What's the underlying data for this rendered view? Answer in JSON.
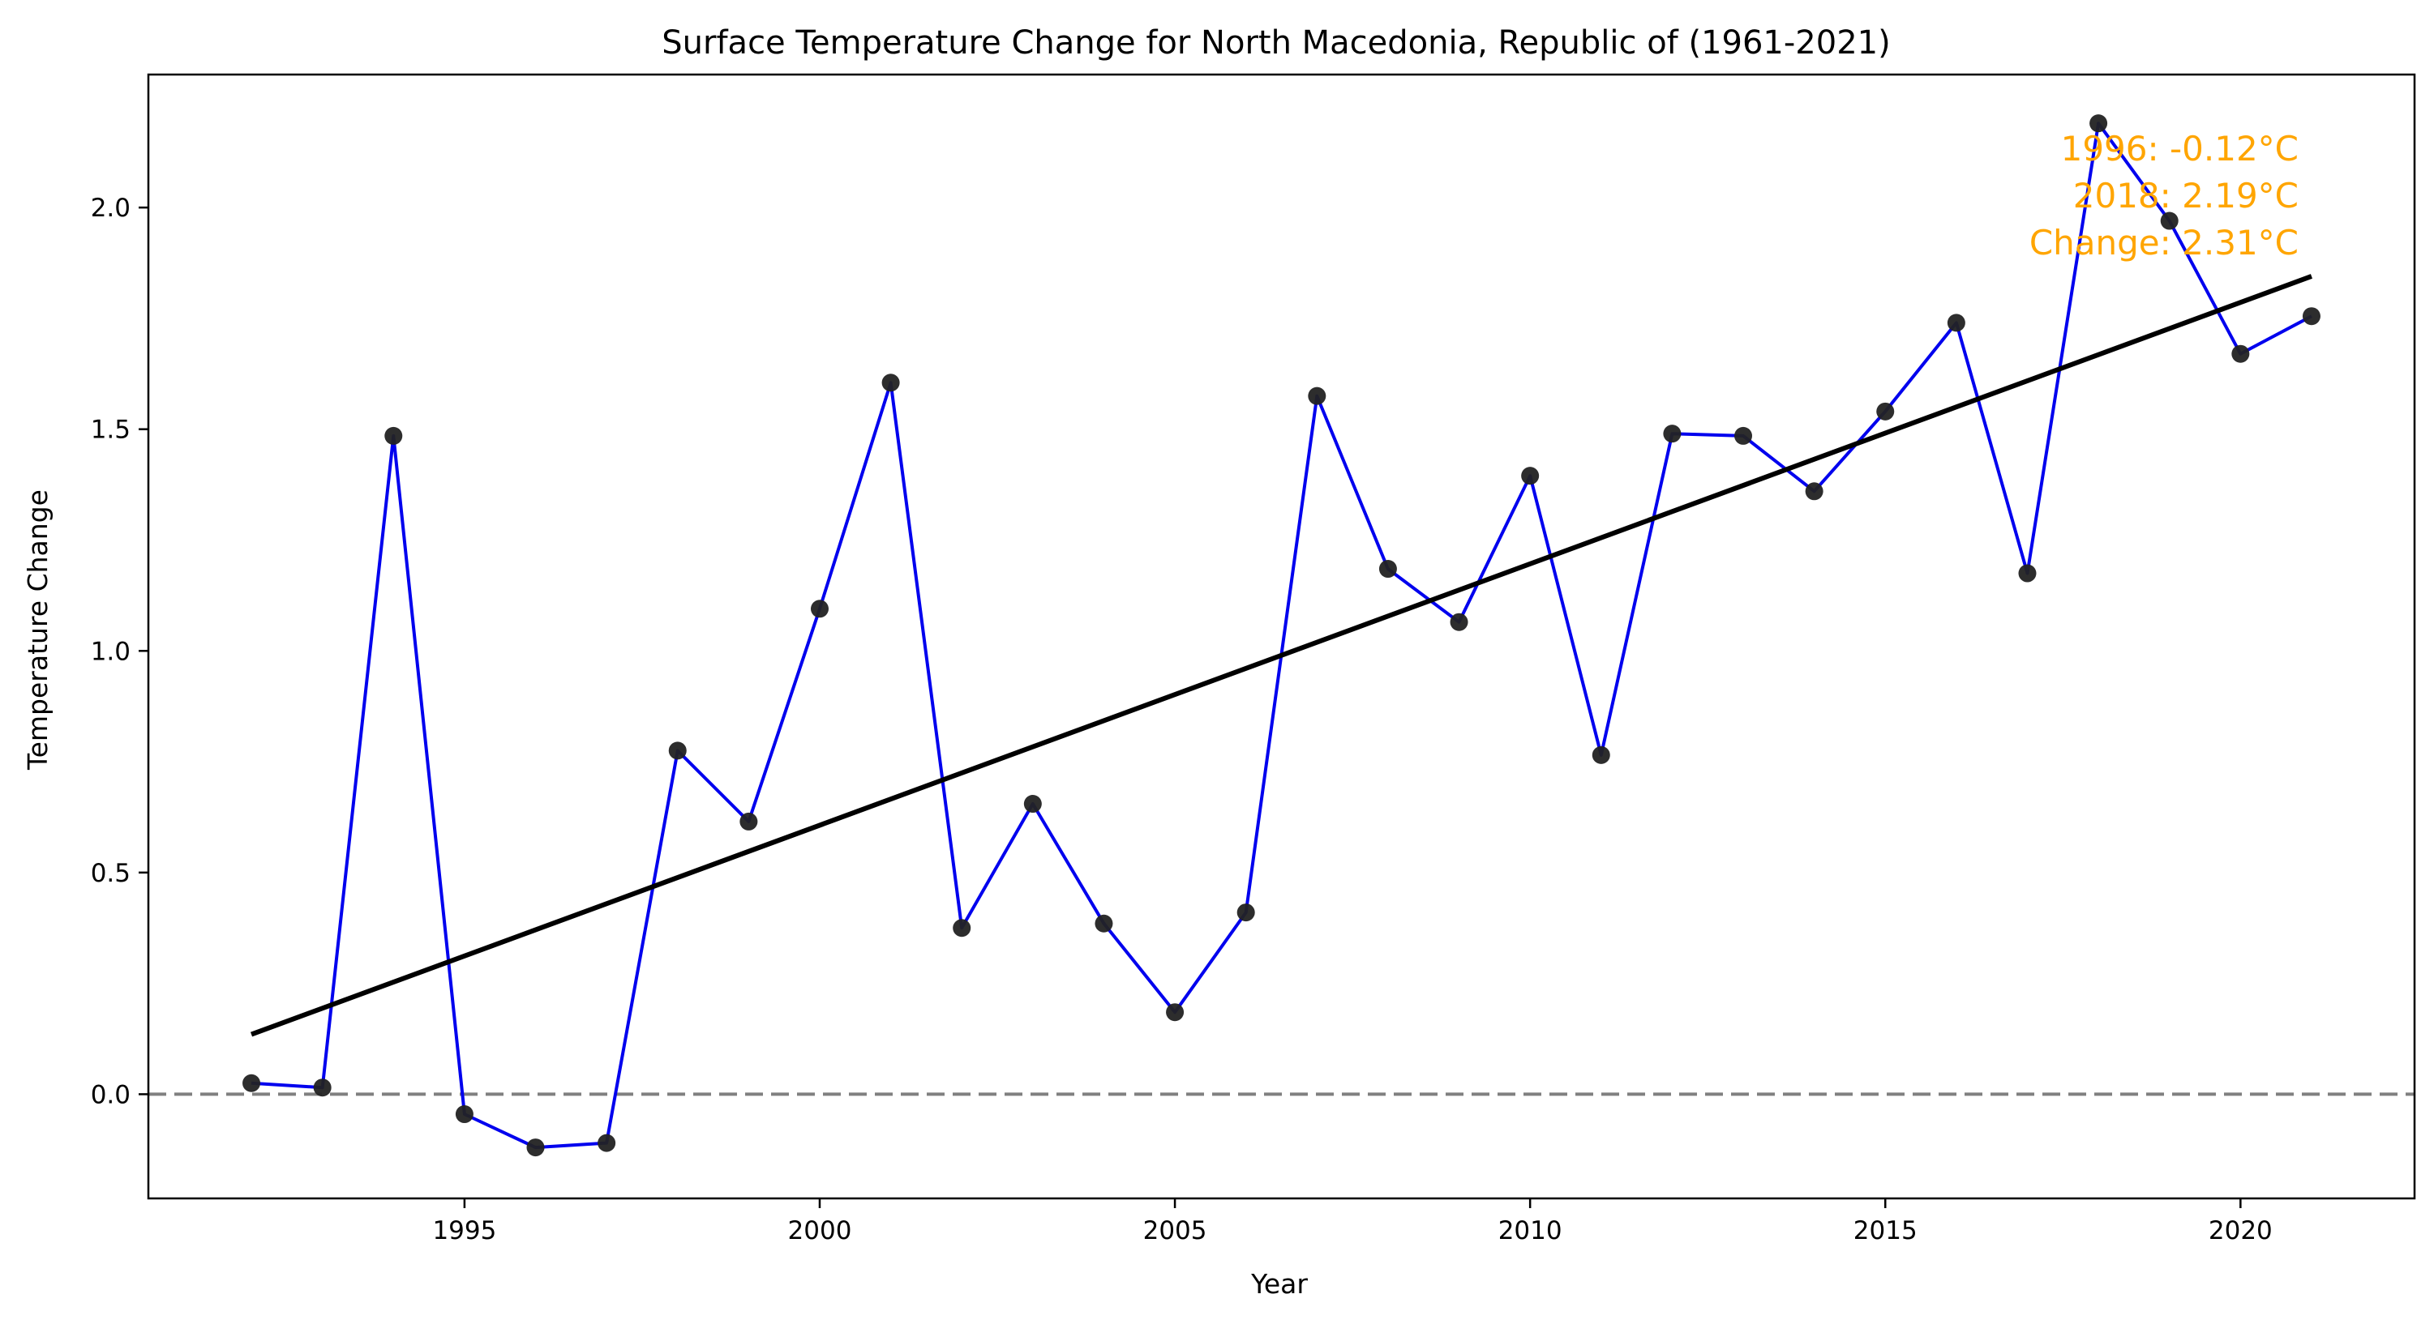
{
  "chart_data": {
    "type": "line",
    "title": "Surface Temperature Change for North Macedonia, Republic of  (1961-2021)",
    "xlabel": "Year",
    "ylabel": "Temperature Change",
    "xlim": [
      1990.55,
      2022.45
    ],
    "ylim": [
      -0.235,
      2.3
    ],
    "xticks": [
      1995,
      2000,
      2005,
      2010,
      2015,
      2020
    ],
    "yticks": [
      0.0,
      0.5,
      1.0,
      1.5,
      2.0
    ],
    "xtick_labels": [
      "1995",
      "2000",
      "2005",
      "2010",
      "2015",
      "2020"
    ],
    "ytick_labels": [
      "0.0",
      "0.5",
      "1.0",
      "1.5",
      "2.0"
    ],
    "grid": false,
    "series": [
      {
        "x": [
          1992,
          1993,
          1994,
          1995,
          1996,
          1997,
          1998,
          1999,
          2000,
          2001,
          2002,
          2003,
          2004,
          2005,
          2006,
          2007,
          2008,
          2009,
          2010,
          2011,
          2012,
          2013,
          2014,
          2015,
          2016,
          2017,
          2018,
          2019,
          2020,
          2021
        ],
        "values": [
          0.025,
          0.015,
          1.485,
          -0.045,
          -0.12,
          -0.11,
          0.775,
          0.615,
          1.095,
          1.605,
          0.375,
          0.655,
          0.385,
          0.185,
          0.41,
          1.575,
          1.185,
          1.065,
          1.395,
          0.765,
          1.49,
          1.485,
          1.36,
          1.54,
          1.74,
          1.175,
          2.19,
          1.97,
          1.67,
          1.755
        ],
        "line_color": "#0000ee",
        "marker_color": "#222222"
      }
    ],
    "trend_line": {
      "x": [
        1992,
        2021
      ],
      "values": [
        0.135,
        1.845
      ],
      "color": "#000000"
    },
    "reference_line": {
      "y": 0.0,
      "style": "dashed",
      "color": "#808080"
    },
    "annotation": {
      "lines": [
        "1996: -0.12°C",
        "2018: 2.19°C",
        "Change: 2.31°C"
      ],
      "color": "#ffa500",
      "placement": "top-right"
    }
  }
}
